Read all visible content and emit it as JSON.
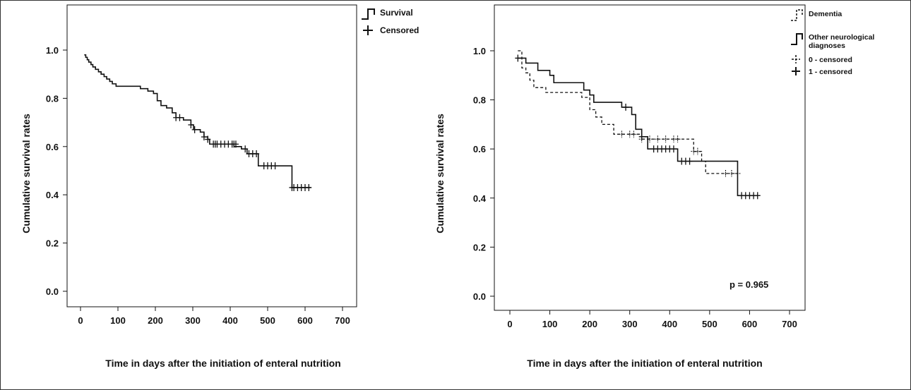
{
  "chart_data": [
    {
      "type": "line",
      "subtype": "kaplan-meier",
      "xlabel": "Time in days after the initiation of enteral nutrition",
      "ylabel": "Cumulative survival rates",
      "xlim": [
        0,
        700
      ],
      "ylim": [
        0,
        1
      ],
      "x_ticks": [
        "0",
        "100",
        "200",
        "300",
        "400",
        "500",
        "600",
        "700"
      ],
      "y_ticks": [
        "0.0",
        "0.2",
        "0.4",
        "0.6",
        "0.8",
        "1.0"
      ],
      "grid": false,
      "legend_position": "right",
      "legend": [
        {
          "label": "Survival",
          "symbol": "step-solid"
        },
        {
          "label": "Censored",
          "symbol": "plus"
        }
      ],
      "series": [
        {
          "name": "Survival",
          "style": "solid",
          "steps": [
            [
              10,
              0.98
            ],
            [
              14,
              0.97
            ],
            [
              18,
              0.96
            ],
            [
              22,
              0.95
            ],
            [
              28,
              0.94
            ],
            [
              33,
              0.93
            ],
            [
              40,
              0.92
            ],
            [
              48,
              0.91
            ],
            [
              55,
              0.9
            ],
            [
              63,
              0.89
            ],
            [
              70,
              0.88
            ],
            [
              78,
              0.87
            ],
            [
              85,
              0.86
            ],
            [
              95,
              0.85
            ],
            [
              160,
              0.84
            ],
            [
              180,
              0.83
            ],
            [
              195,
              0.82
            ],
            [
              205,
              0.79
            ],
            [
              215,
              0.77
            ],
            [
              230,
              0.76
            ],
            [
              245,
              0.74
            ],
            [
              255,
              0.72
            ],
            [
              275,
              0.71
            ],
            [
              295,
              0.69
            ],
            [
              302,
              0.67
            ],
            [
              320,
              0.66
            ],
            [
              330,
              0.64
            ],
            [
              340,
              0.63
            ],
            [
              345,
              0.61
            ],
            [
              350,
              0.61
            ],
            [
              410,
              0.6
            ],
            [
              430,
              0.59
            ],
            [
              445,
              0.57
            ],
            [
              475,
              0.52
            ],
            [
              565,
              0.43
            ],
            [
              615,
              0.43
            ]
          ],
          "censored": [
            [
              255,
              0.72
            ],
            [
              265,
              0.72
            ],
            [
              295,
              0.69
            ],
            [
              305,
              0.67
            ],
            [
              330,
              0.64
            ],
            [
              340,
              0.63
            ],
            [
              355,
              0.61
            ],
            [
              360,
              0.61
            ],
            [
              365,
              0.61
            ],
            [
              375,
              0.61
            ],
            [
              385,
              0.61
            ],
            [
              395,
              0.61
            ],
            [
              405,
              0.61
            ],
            [
              410,
              0.61
            ],
            [
              415,
              0.61
            ],
            [
              440,
              0.59
            ],
            [
              450,
              0.57
            ],
            [
              460,
              0.57
            ],
            [
              470,
              0.57
            ],
            [
              490,
              0.52
            ],
            [
              500,
              0.52
            ],
            [
              510,
              0.52
            ],
            [
              520,
              0.52
            ],
            [
              565,
              0.43
            ],
            [
              570,
              0.43
            ],
            [
              580,
              0.43
            ],
            [
              590,
              0.43
            ],
            [
              600,
              0.43
            ],
            [
              610,
              0.43
            ]
          ]
        }
      ]
    },
    {
      "type": "line",
      "subtype": "kaplan-meier",
      "xlabel": "Time in days after the initiation of enteral nutrition",
      "ylabel": "Cumulative survival rates",
      "xlim": [
        0,
        700
      ],
      "ylim": [
        0,
        1
      ],
      "x_ticks": [
        "0",
        "100",
        "200",
        "300",
        "400",
        "500",
        "600",
        "700"
      ],
      "y_ticks": [
        "0.0",
        "0.2",
        "0.4",
        "0.6",
        "0.8",
        "1.0"
      ],
      "grid": false,
      "legend_position": "top-right",
      "annotation": "p = 0.965",
      "legend": [
        {
          "label": "Dementia",
          "symbol": "step-dashed"
        },
        {
          "label": "Other neurological diagnoses",
          "label_lines": [
            "Other neurological",
            "diagnoses"
          ],
          "symbol": "step-solid"
        },
        {
          "label": "0 - censored",
          "symbol": "plus-dashed"
        },
        {
          "label": "1 - censored",
          "symbol": "plus"
        }
      ],
      "series": [
        {
          "name": "Dementia",
          "style": "dashed",
          "steps": [
            [
              20,
              1.0
            ],
            [
              30,
              0.93
            ],
            [
              40,
              0.91
            ],
            [
              50,
              0.88
            ],
            [
              60,
              0.85
            ],
            [
              90,
              0.83
            ],
            [
              180,
              0.81
            ],
            [
              200,
              0.76
            ],
            [
              215,
              0.73
            ],
            [
              230,
              0.7
            ],
            [
              260,
              0.66
            ],
            [
              330,
              0.64
            ],
            [
              460,
              0.59
            ],
            [
              480,
              0.55
            ],
            [
              490,
              0.5
            ],
            [
              570,
              0.5
            ]
          ],
          "censored": [
            [
              280,
              0.66
            ],
            [
              300,
              0.66
            ],
            [
              310,
              0.66
            ],
            [
              330,
              0.64
            ],
            [
              350,
              0.64
            ],
            [
              370,
              0.64
            ],
            [
              390,
              0.64
            ],
            [
              410,
              0.64
            ],
            [
              420,
              0.64
            ],
            [
              460,
              0.59
            ],
            [
              470,
              0.59
            ],
            [
              540,
              0.5
            ],
            [
              555,
              0.5
            ],
            [
              570,
              0.5
            ]
          ]
        },
        {
          "name": "Other neurological diagnoses",
          "style": "solid",
          "steps": [
            [
              20,
              0.97
            ],
            [
              40,
              0.95
            ],
            [
              70,
              0.92
            ],
            [
              100,
              0.9
            ],
            [
              110,
              0.87
            ],
            [
              185,
              0.84
            ],
            [
              200,
              0.82
            ],
            [
              210,
              0.79
            ],
            [
              280,
              0.77
            ],
            [
              305,
              0.74
            ],
            [
              315,
              0.68
            ],
            [
              330,
              0.65
            ],
            [
              345,
              0.6
            ],
            [
              420,
              0.55
            ],
            [
              480,
              0.55
            ],
            [
              570,
              0.41
            ],
            [
              620,
              0.41
            ]
          ],
          "censored": [
            [
              20,
              0.97
            ],
            [
              290,
              0.77
            ],
            [
              330,
              0.65
            ],
            [
              360,
              0.6
            ],
            [
              370,
              0.6
            ],
            [
              380,
              0.6
            ],
            [
              390,
              0.6
            ],
            [
              400,
              0.6
            ],
            [
              410,
              0.6
            ],
            [
              430,
              0.55
            ],
            [
              440,
              0.55
            ],
            [
              450,
              0.55
            ],
            [
              580,
              0.41
            ],
            [
              590,
              0.41
            ],
            [
              600,
              0.41
            ],
            [
              610,
              0.41
            ],
            [
              620,
              0.41
            ]
          ]
        }
      ]
    }
  ]
}
